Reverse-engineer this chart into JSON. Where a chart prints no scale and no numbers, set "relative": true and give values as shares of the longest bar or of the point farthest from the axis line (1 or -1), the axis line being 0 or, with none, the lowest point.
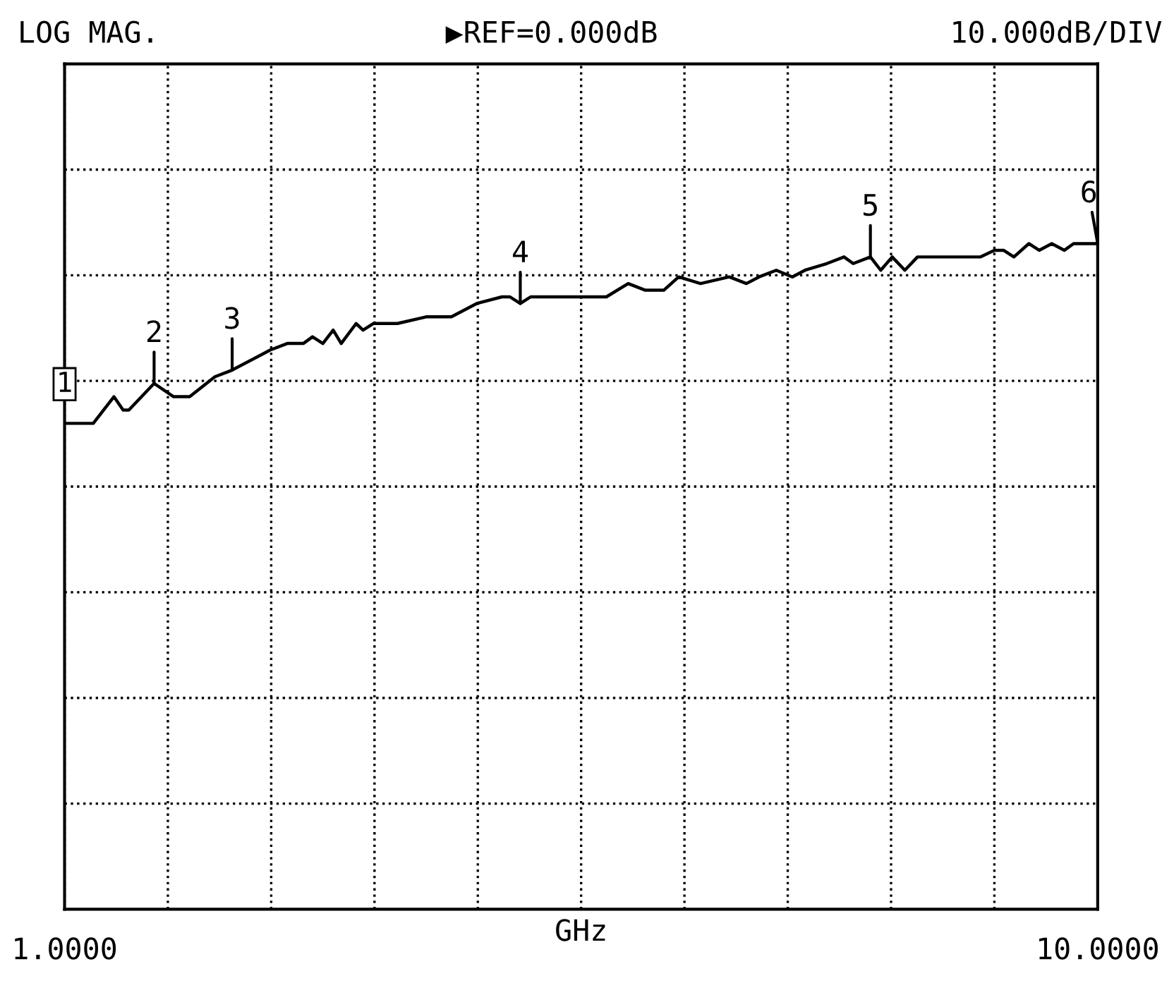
{
  "chart_data": {
    "type": "line",
    "title": "LOG MAG.",
    "xlabel": "GHz",
    "relative": true,
    "annotations": [
      "▶REF=0.000dB",
      "10.000dB/DIV",
      {
        "text": "1",
        "x": 1.0,
        "y": 0.73
      },
      {
        "text": "2",
        "x": 1.78,
        "y": 0.79
      },
      {
        "text": "3",
        "x": 2.46,
        "y": 0.81
      },
      {
        "text": "4",
        "x": 4.97,
        "y": 0.91
      },
      {
        "text": "5",
        "x": 8.02,
        "y": 0.98
      },
      {
        "text": "6",
        "x": 10.0,
        "y": 1.0
      }
    ],
    "xlim": [
      1,
      10
    ],
    "xticks": [
      {
        "value": 1,
        "label": "1.0000"
      },
      {
        "value": 1.9,
        "label": null
      },
      {
        "value": 2.8,
        "label": null
      },
      {
        "value": 3.7,
        "label": null
      },
      {
        "value": 4.6,
        "label": null
      },
      {
        "value": 5.5,
        "label": null
      },
      {
        "value": 6.4,
        "label": null
      },
      {
        "value": 7.3,
        "label": null
      },
      {
        "value": 8.2,
        "label": null
      },
      {
        "value": 9.1,
        "label": null
      },
      {
        "value": 10,
        "label": "10.0000"
      }
    ],
    "grid": true,
    "marker": "none",
    "line_style": "solid",
    "series": [
      {
        "color": "#000000",
        "x": [
          1.0,
          1.25,
          1.43,
          1.51,
          1.56,
          1.78,
          1.95,
          2.09,
          2.31,
          2.46,
          2.68,
          2.79,
          2.94,
          3.08,
          3.16,
          3.25,
          3.34,
          3.41,
          3.54,
          3.6,
          3.69,
          3.9,
          4.15,
          4.37,
          4.59,
          4.81,
          4.88,
          4.97,
          5.06,
          5.25,
          5.47,
          5.72,
          5.91,
          6.06,
          6.22,
          6.35,
          6.54,
          6.79,
          6.94,
          7.05,
          7.2,
          7.34,
          7.45,
          7.64,
          7.79,
          7.87,
          8.02,
          8.11,
          8.21,
          8.32,
          8.43,
          8.57,
          8.79,
          8.98,
          9.1,
          9.18,
          9.27,
          9.4,
          9.49,
          9.6,
          9.71,
          9.79,
          9.99,
          10.0
        ],
        "values": [
          0.73,
          0.73,
          0.77,
          0.75,
          0.75,
          0.79,
          0.77,
          0.77,
          0.8,
          0.81,
          0.83,
          0.84,
          0.85,
          0.85,
          0.86,
          0.85,
          0.87,
          0.85,
          0.88,
          0.87,
          0.88,
          0.88,
          0.89,
          0.89,
          0.91,
          0.92,
          0.92,
          0.91,
          0.92,
          0.92,
          0.92,
          0.92,
          0.94,
          0.93,
          0.93,
          0.95,
          0.94,
          0.95,
          0.94,
          0.95,
          0.96,
          0.95,
          0.96,
          0.97,
          0.98,
          0.97,
          0.98,
          0.96,
          0.98,
          0.96,
          0.98,
          0.98,
          0.98,
          0.98,
          0.99,
          0.99,
          0.98,
          1.0,
          0.99,
          1.0,
          0.99,
          1.0,
          1.0,
          1.0
        ]
      }
    ]
  }
}
